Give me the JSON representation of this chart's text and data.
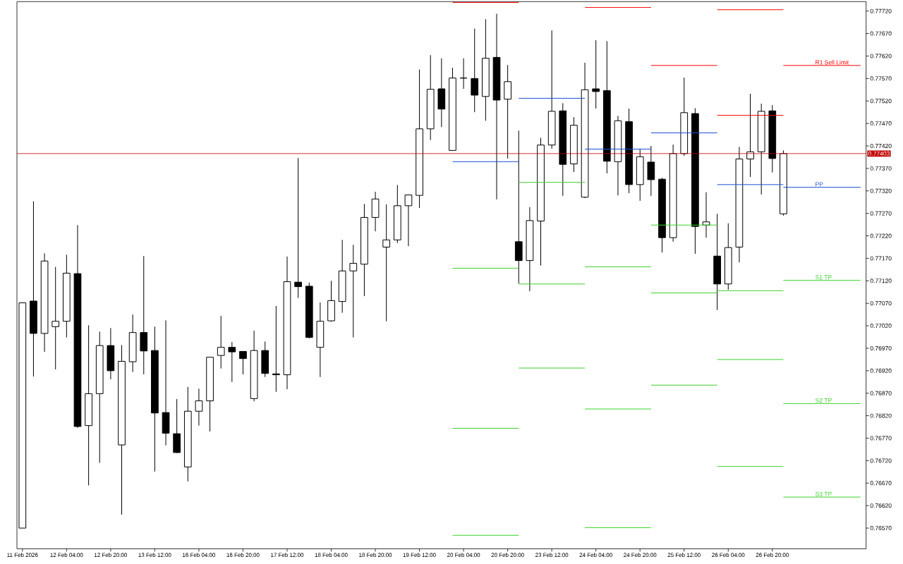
{
  "chart_data": {
    "type": "candlestick",
    "color": "#000000",
    "categories": [
      "11 Feb 2026",
      null,
      null,
      null,
      "12 Feb 04:00",
      null,
      null,
      null,
      "12 Feb 20:00",
      null,
      null,
      null,
      "13 Feb 12:00",
      null,
      null,
      null,
      "16 Feb 04:00",
      null,
      null,
      null,
      "16 Feb 20:00",
      null,
      null,
      null,
      "17 Feb 12:00",
      null,
      null,
      null,
      "18 Feb 04:00",
      null,
      null,
      null,
      "18 Feb 20:00",
      null,
      null,
      null,
      "19 Feb 12:00",
      null,
      null,
      null,
      "20 Feb 04:00",
      null,
      null,
      null,
      "20 Feb 20:00",
      null,
      null,
      null,
      "23 Feb 12:00",
      null,
      null,
      null,
      "24 Feb 04:00",
      null,
      null,
      null,
      "24 Feb 20:00",
      null,
      null,
      null,
      "25 Feb 12:00",
      null,
      null,
      null,
      "26 Feb 04:00",
      null,
      null,
      null,
      "26 Feb 20:00",
      null,
      null,
      null,
      null,
      null,
      null,
      null,
      null
    ],
    "ohlc": [
      [
        0.7657,
        0.77071,
        0.7657,
        0.77071
      ],
      [
        0.77075,
        0.77297,
        0.76907,
        0.77003
      ],
      [
        0.77003,
        0.77181,
        0.76962,
        0.77164
      ],
      [
        0.77018,
        0.77151,
        0.76923,
        0.7703
      ],
      [
        0.7703,
        0.77178,
        0.76994,
        0.77137
      ],
      [
        0.77136,
        0.77244,
        0.76793,
        0.76796
      ],
      [
        0.76798,
        0.77021,
        0.76665,
        0.76869
      ],
      [
        0.76869,
        0.77007,
        0.76715,
        0.76976
      ],
      [
        0.76976,
        0.77015,
        0.76901,
        0.7692
      ],
      [
        0.76755,
        0.76977,
        0.766,
        0.76941
      ],
      [
        0.7694,
        0.77045,
        0.76917,
        0.77005
      ],
      [
        0.77005,
        0.77175,
        0.76912,
        0.76964
      ],
      [
        0.76965,
        0.77018,
        0.76696,
        0.76826
      ],
      [
        0.76827,
        0.77032,
        0.76754,
        0.76781
      ],
      [
        0.7678,
        0.76857,
        0.76737,
        0.76738
      ],
      [
        0.76706,
        0.76884,
        0.76674,
        0.7683
      ],
      [
        0.7683,
        0.7688,
        0.76798,
        0.76853
      ],
      [
        0.76853,
        0.7695,
        0.76785,
        0.7695
      ],
      [
        0.76954,
        0.77042,
        0.76925,
        0.76972
      ],
      [
        0.76972,
        0.76984,
        0.76895,
        0.76962
      ],
      [
        0.76963,
        0.76963,
        0.76912,
        0.76947
      ],
      [
        0.76858,
        0.77009,
        0.76852,
        0.76965
      ],
      [
        0.76965,
        0.76985,
        0.76906,
        0.76914
      ],
      [
        0.76913,
        0.77064,
        0.76873,
        0.76911
      ],
      [
        0.76911,
        0.77174,
        0.76879,
        0.77118
      ],
      [
        0.77117,
        0.77393,
        0.77082,
        0.77107
      ],
      [
        0.77108,
        0.77116,
        0.76992,
        0.76994
      ],
      [
        0.76972,
        0.77072,
        0.76906,
        0.7703
      ],
      [
        0.77031,
        0.7712,
        0.77029,
        0.77076
      ],
      [
        0.77074,
        0.77211,
        0.77049,
        0.77142
      ],
      [
        0.77142,
        0.772,
        0.76994,
        0.77159
      ],
      [
        0.77157,
        0.77291,
        0.77086,
        0.77261
      ],
      [
        0.77261,
        0.77318,
        0.7723,
        0.77302
      ],
      [
        0.77195,
        0.7729,
        0.7703,
        0.77211
      ],
      [
        0.77211,
        0.77333,
        0.77204,
        0.77287
      ],
      [
        0.77287,
        0.77311,
        0.77197,
        0.77311
      ],
      [
        0.7731,
        0.7759,
        0.77282,
        0.77458
      ],
      [
        0.77458,
        0.77622,
        0.77433,
        0.77546
      ],
      [
        0.77547,
        0.77615,
        0.77462,
        0.77502
      ],
      [
        0.7741,
        0.77594,
        0.7741,
        0.77571
      ],
      [
        0.77571,
        0.77615,
        0.77547,
        0.77571
      ],
      [
        0.7757,
        0.77681,
        0.77495,
        0.77533
      ],
      [
        0.7753,
        0.77702,
        0.77476,
        0.77615
      ],
      [
        0.77617,
        0.77714,
        0.77301,
        0.77522
      ],
      [
        0.77524,
        0.776,
        0.77392,
        0.77563
      ],
      [
        0.77207,
        0.77454,
        0.77114,
        0.77165
      ],
      [
        0.77165,
        0.77284,
        0.77097,
        0.77254
      ],
      [
        0.77253,
        0.77438,
        0.77154,
        0.77422
      ],
      [
        0.77422,
        0.77677,
        0.77414,
        0.77497
      ],
      [
        0.77498,
        0.77515,
        0.77309,
        0.77379
      ],
      [
        0.7738,
        0.77484,
        0.77362,
        0.77466
      ],
      [
        0.77306,
        0.77605,
        0.77304,
        0.77545
      ],
      [
        0.77547,
        0.77655,
        0.77503,
        0.77541
      ],
      [
        0.77543,
        0.77653,
        0.77359,
        0.77386
      ],
      [
        0.77385,
        0.77487,
        0.7731,
        0.77476
      ],
      [
        0.77474,
        0.77503,
        0.77315,
        0.77334
      ],
      [
        0.77334,
        0.77413,
        0.77298,
        0.77396
      ],
      [
        0.77384,
        0.7742,
        0.77309,
        0.77345
      ],
      [
        0.77346,
        0.77349,
        0.77183,
        0.77216
      ],
      [
        0.77216,
        0.77423,
        0.77207,
        0.77403
      ],
      [
        0.77403,
        0.77572,
        0.77398,
        0.77494
      ],
      [
        0.77492,
        0.77504,
        0.7718,
        0.77241
      ],
      [
        0.77244,
        0.77317,
        0.77216,
        0.77251
      ],
      [
        0.77175,
        0.77269,
        0.77055,
        0.77113
      ],
      [
        0.77113,
        0.77248,
        0.771,
        0.77194
      ],
      [
        0.77195,
        0.77418,
        0.77161,
        0.77391
      ],
      [
        0.77391,
        0.77536,
        0.77351,
        0.77407
      ],
      [
        0.77407,
        0.77514,
        0.77312,
        0.77497
      ],
      [
        0.77498,
        0.77511,
        0.77361,
        0.77392
      ],
      [
        0.77269,
        0.7741,
        0.77265,
        0.77403
      ],
      null,
      null,
      null,
      null,
      null,
      null,
      null
    ],
    "series": [
      {
        "type": "line",
        "color": "#ff0000",
        "values": [
          null,
          null,
          null,
          null,
          null,
          null,
          null,
          null,
          null,
          null,
          null,
          null,
          null,
          null,
          null,
          null,
          null,
          null,
          null,
          null,
          null,
          null,
          null,
          null,
          null,
          null,
          null,
          null,
          null,
          null,
          null,
          null,
          null,
          null,
          null,
          null,
          null,
          null,
          null,
          0.77739,
          0.77739,
          0.77739,
          0.77739,
          0.77739,
          0.77739,
          0.77739,
          null,
          null,
          null,
          null,
          null,
          0.77728,
          0.77728,
          0.77728,
          0.77728,
          0.77728,
          0.77728,
          0.77728,
          null,
          null,
          null,
          null,
          null,
          0.77488,
          0.77488,
          0.77488,
          0.77488,
          0.77488,
          0.77488,
          0.77488,
          null,
          null,
          null,
          null,
          null,
          null,
          null
        ]
      },
      {
        "type": "line",
        "name": "R1 Sell Limit",
        "color": "#ff0000",
        "values": [
          null,
          null,
          null,
          null,
          null,
          null,
          null,
          null,
          null,
          null,
          null,
          null,
          null,
          null,
          null,
          null,
          null,
          null,
          null,
          null,
          null,
          null,
          null,
          null,
          null,
          null,
          null,
          null,
          null,
          null,
          null,
          null,
          null,
          null,
          null,
          null,
          null,
          null,
          null,
          null,
          null,
          null,
          null,
          null,
          null,
          null,
          null,
          null,
          null,
          null,
          null,
          null,
          null,
          null,
          null,
          null,
          null,
          0.77599,
          0.77599,
          0.77599,
          0.77599,
          0.77599,
          0.77599,
          0.77599,
          null,
          null,
          null,
          null,
          null,
          0.77599,
          0.77599,
          0.77599,
          0.77599,
          0.77599,
          0.77599,
          0.77599,
          0.77599
        ]
      },
      {
        "type": "line",
        "color": "#ff0000",
        "values": [
          null,
          null,
          null,
          null,
          null,
          null,
          null,
          null,
          null,
          null,
          null,
          null,
          null,
          null,
          null,
          null,
          null,
          null,
          null,
          null,
          null,
          null,
          null,
          null,
          null,
          null,
          null,
          null,
          null,
          null,
          null,
          null,
          null,
          null,
          null,
          null,
          null,
          null,
          null,
          null,
          null,
          null,
          null,
          null,
          null,
          null,
          null,
          null,
          null,
          null,
          null,
          null,
          null,
          null,
          null,
          null,
          null,
          null,
          null,
          null,
          null,
          null,
          null,
          0.77723,
          0.77723,
          0.77723,
          0.77723,
          0.77723,
          0.77723,
          0.77723,
          null,
          null,
          null,
          null,
          null,
          null,
          null
        ]
      },
      {
        "type": "line",
        "color": "#1a4fd6",
        "values": [
          null,
          null,
          null,
          null,
          null,
          null,
          null,
          null,
          null,
          null,
          null,
          null,
          null,
          null,
          null,
          null,
          null,
          null,
          null,
          null,
          null,
          null,
          null,
          null,
          null,
          null,
          null,
          null,
          null,
          null,
          null,
          null,
          null,
          null,
          null,
          null,
          null,
          null,
          null,
          0.77385,
          0.77385,
          0.77385,
          0.77385,
          0.77385,
          0.77385,
          0.77385,
          null,
          null,
          null,
          null,
          null,
          0.77413,
          0.77413,
          0.77413,
          0.77413,
          0.77413,
          0.77413,
          0.77413,
          null,
          null,
          null,
          null,
          null,
          0.77334,
          0.77334,
          0.77334,
          0.77334,
          0.77334,
          0.77334,
          0.77334,
          null,
          null,
          null,
          null,
          null,
          null,
          null
        ]
      },
      {
        "type": "line",
        "name": "PP",
        "color": "#1a4fd6",
        "values": [
          null,
          null,
          null,
          null,
          null,
          null,
          null,
          null,
          null,
          null,
          null,
          null,
          null,
          null,
          null,
          null,
          null,
          null,
          null,
          null,
          null,
          null,
          null,
          null,
          null,
          null,
          null,
          null,
          null,
          null,
          null,
          null,
          null,
          null,
          null,
          null,
          null,
          null,
          null,
          null,
          null,
          null,
          null,
          null,
          null,
          0.77526,
          0.77526,
          0.77526,
          0.77526,
          0.77526,
          0.77526,
          0.77526,
          null,
          null,
          null,
          null,
          null,
          0.77449,
          0.77449,
          0.77449,
          0.77449,
          0.77449,
          0.77449,
          0.77449,
          null,
          null,
          null,
          null,
          null,
          0.77328,
          0.77328,
          0.77328,
          0.77328,
          0.77328,
          0.77328,
          0.77328,
          0.77328
        ]
      },
      {
        "type": "line",
        "color": "#3cd22a",
        "values": [
          null,
          null,
          null,
          null,
          null,
          null,
          null,
          null,
          null,
          null,
          null,
          null,
          null,
          null,
          null,
          null,
          null,
          null,
          null,
          null,
          null,
          null,
          null,
          null,
          null,
          null,
          null,
          null,
          null,
          null,
          null,
          null,
          null,
          null,
          null,
          null,
          null,
          null,
          null,
          0.77148,
          0.77148,
          0.77148,
          0.77148,
          0.77148,
          0.77148,
          0.77148,
          null,
          null,
          null,
          null,
          null,
          0.77151,
          0.77151,
          0.77151,
          0.77151,
          0.77151,
          0.77151,
          0.77151,
          null,
          null,
          null,
          null,
          null,
          0.77098,
          0.77098,
          0.77098,
          0.77098,
          0.77098,
          0.77098,
          0.77098,
          null,
          null,
          null,
          null,
          null,
          null,
          null
        ]
      },
      {
        "type": "line",
        "name": "S1 TP",
        "color": "#3cd22a",
        "values": [
          null,
          null,
          null,
          null,
          null,
          null,
          null,
          null,
          null,
          null,
          null,
          null,
          null,
          null,
          null,
          null,
          null,
          null,
          null,
          null,
          null,
          null,
          null,
          null,
          null,
          null,
          null,
          null,
          null,
          null,
          null,
          null,
          null,
          null,
          null,
          null,
          null,
          null,
          null,
          null,
          null,
          null,
          null,
          null,
          null,
          0.77339,
          0.77339,
          0.77339,
          0.77339,
          0.77339,
          0.77339,
          0.77339,
          null,
          null,
          null,
          null,
          null,
          0.77244,
          0.77244,
          0.77244,
          0.77244,
          0.77244,
          0.77244,
          0.77244,
          null,
          null,
          null,
          null,
          null,
          0.77121,
          0.77121,
          0.77121,
          0.77121,
          0.77121,
          0.77121,
          0.77121,
          0.77121
        ]
      },
      {
        "type": "line",
        "color": "#3cd22a",
        "values": [
          null,
          null,
          null,
          null,
          null,
          null,
          null,
          null,
          null,
          null,
          null,
          null,
          null,
          null,
          null,
          null,
          null,
          null,
          null,
          null,
          null,
          null,
          null,
          null,
          null,
          null,
          null,
          null,
          null,
          null,
          null,
          null,
          null,
          null,
          null,
          null,
          null,
          null,
          null,
          0.76792,
          0.76792,
          0.76792,
          0.76792,
          0.76792,
          0.76792,
          0.76792,
          null,
          null,
          null,
          null,
          null,
          0.76835,
          0.76835,
          0.76835,
          0.76835,
          0.76835,
          0.76835,
          0.76835,
          null,
          null,
          null,
          null,
          null,
          0.76945,
          0.76945,
          0.76945,
          0.76945,
          0.76945,
          0.76945,
          0.76945,
          null,
          null,
          null,
          null,
          null,
          null,
          null
        ]
      },
      {
        "type": "line",
        "name": "S2 TP",
        "color": "#3cd22a",
        "values": [
          null,
          null,
          null,
          null,
          null,
          null,
          null,
          null,
          null,
          null,
          null,
          null,
          null,
          null,
          null,
          null,
          null,
          null,
          null,
          null,
          null,
          null,
          null,
          null,
          null,
          null,
          null,
          null,
          null,
          null,
          null,
          null,
          null,
          null,
          null,
          null,
          null,
          null,
          null,
          null,
          null,
          null,
          null,
          null,
          null,
          0.77113,
          0.77113,
          0.77113,
          0.77113,
          0.77113,
          0.77113,
          0.77113,
          null,
          null,
          null,
          null,
          null,
          0.77093,
          0.77093,
          0.77093,
          0.77093,
          0.77093,
          0.77093,
          0.77093,
          null,
          null,
          null,
          null,
          null,
          0.76847,
          0.76847,
          0.76847,
          0.76847,
          0.76847,
          0.76847,
          0.76847,
          0.76847
        ]
      },
      {
        "type": "line",
        "color": "#3cd22a",
        "values": [
          null,
          null,
          null,
          null,
          null,
          null,
          null,
          null,
          null,
          null,
          null,
          null,
          null,
          null,
          null,
          null,
          null,
          null,
          null,
          null,
          null,
          null,
          null,
          null,
          null,
          null,
          null,
          null,
          null,
          null,
          null,
          null,
          null,
          null,
          null,
          null,
          null,
          null,
          null,
          0.76554,
          0.76554,
          0.76554,
          0.76554,
          0.76554,
          0.76554,
          0.76554,
          null,
          null,
          null,
          null,
          null,
          0.76571,
          0.76571,
          0.76571,
          0.76571,
          0.76571,
          0.76571,
          0.76571,
          null,
          null,
          null,
          null,
          null,
          0.76707,
          0.76707,
          0.76707,
          0.76707,
          0.76707,
          0.76707,
          0.76707,
          null,
          null,
          null,
          null,
          null,
          null,
          null
        ]
      },
      {
        "type": "line",
        "name": "S3 TP",
        "color": "#3cd22a",
        "values": [
          null,
          null,
          null,
          null,
          null,
          null,
          null,
          null,
          null,
          null,
          null,
          null,
          null,
          null,
          null,
          null,
          null,
          null,
          null,
          null,
          null,
          null,
          null,
          null,
          null,
          null,
          null,
          null,
          null,
          null,
          null,
          null,
          null,
          null,
          null,
          null,
          null,
          null,
          null,
          null,
          null,
          null,
          null,
          null,
          null,
          0.76926,
          0.76926,
          0.76926,
          0.76926,
          0.76926,
          0.76926,
          0.76926,
          null,
          null,
          null,
          null,
          null,
          0.76888,
          0.76888,
          0.76888,
          0.76888,
          0.76888,
          0.76888,
          0.76888,
          null,
          null,
          null,
          null,
          null,
          0.76639,
          0.76639,
          0.76639,
          0.76639,
          0.76639,
          0.76639,
          0.76639,
          0.76639
        ]
      }
    ],
    "ref_lines": [
      {
        "axis": "y",
        "value": 0.77403,
        "label": "0.77403",
        "color": "#c00000"
      }
    ],
    "ylim": [
      0.76524,
      0.77741
    ],
    "yticks": [
      {
        "value": 0.7772,
        "label": "0.77720"
      },
      {
        "value": 0.7767,
        "label": "0.77670"
      },
      {
        "value": 0.7762,
        "label": "0.77620"
      },
      {
        "value": 0.7757,
        "label": "0.77570"
      },
      {
        "value": 0.7752,
        "label": "0.77520"
      },
      {
        "value": 0.7747,
        "label": "0.77470"
      },
      {
        "value": 0.7742,
        "label": "0.77420"
      },
      {
        "value": 0.7737,
        "label": "0.77370"
      },
      {
        "value": 0.7732,
        "label": "0.77320"
      },
      {
        "value": 0.7727,
        "label": "0.77270"
      },
      {
        "value": 0.7722,
        "label": "0.77220"
      },
      {
        "value": 0.7717,
        "label": "0.77170"
      },
      {
        "value": 0.7712,
        "label": "0.77120"
      },
      {
        "value": 0.7707,
        "label": "0.77070"
      },
      {
        "value": 0.7702,
        "label": "0.77020"
      },
      {
        "value": 0.7697,
        "label": "0.76970"
      },
      {
        "value": 0.7692,
        "label": "0.76920"
      },
      {
        "value": 0.7687,
        "label": "0.76870"
      },
      {
        "value": 0.7682,
        "label": "0.76820"
      },
      {
        "value": 0.7677,
        "label": "0.76770"
      },
      {
        "value": 0.7672,
        "label": "0.76720"
      },
      {
        "value": 0.7667,
        "label": "0.76670"
      },
      {
        "value": 0.7662,
        "label": "0.76620"
      },
      {
        "value": 0.7657,
        "label": "0.76570"
      }
    ]
  }
}
